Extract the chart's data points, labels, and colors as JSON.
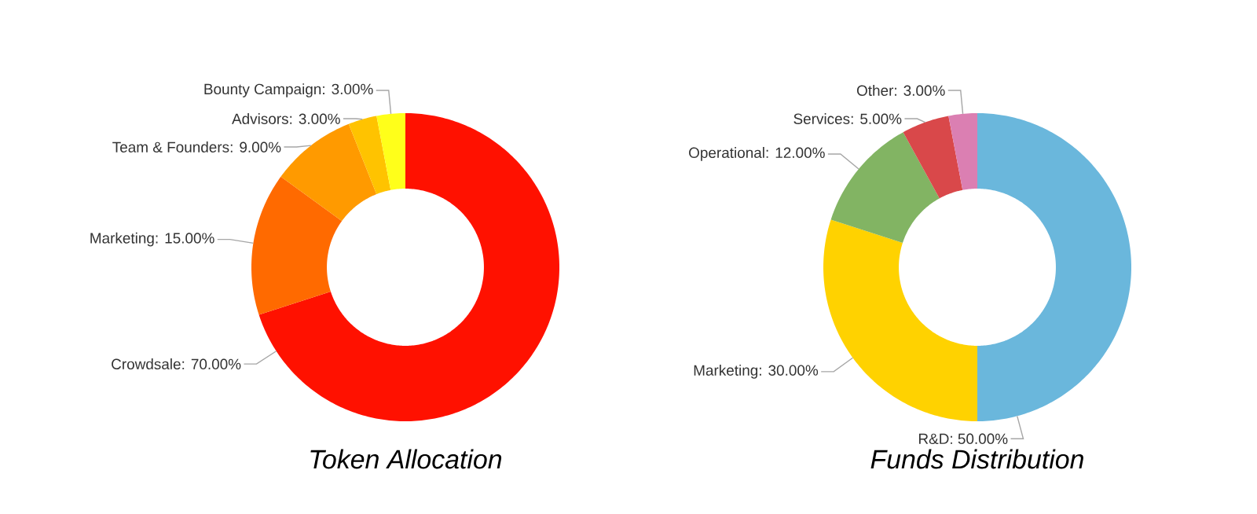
{
  "chart_data": [
    {
      "type": "donut",
      "title": "Token Allocation",
      "categories": [
        "Crowdsale",
        "Marketing",
        "Team & Founders",
        "Advisors",
        "Bounty Campaign"
      ],
      "values": [
        70,
        15,
        9,
        3,
        3
      ],
      "value_labels": [
        ": 70.00%",
        ": 15.00%",
        ": 9.00%",
        ": 3.00%",
        ": 3.00%"
      ],
      "colors": [
        "#ff1100",
        "#ff6a00",
        "#ff9a00",
        "#ffc300",
        "#ffff1a"
      ]
    },
    {
      "type": "donut",
      "title": "Funds Distribution",
      "categories": [
        "R&D",
        "Marketing",
        "Operational",
        "Services",
        "Other"
      ],
      "values": [
        50,
        30,
        12,
        5,
        3
      ],
      "value_labels": [
        ": 50.00%",
        ": 30.00%",
        ": 12.00%",
        ": 5.00%",
        ": 3.00%"
      ],
      "colors": [
        "#6ab7dc",
        "#ffd200",
        "#82b463",
        "#d9484a",
        "#db7fb2"
      ]
    }
  ]
}
